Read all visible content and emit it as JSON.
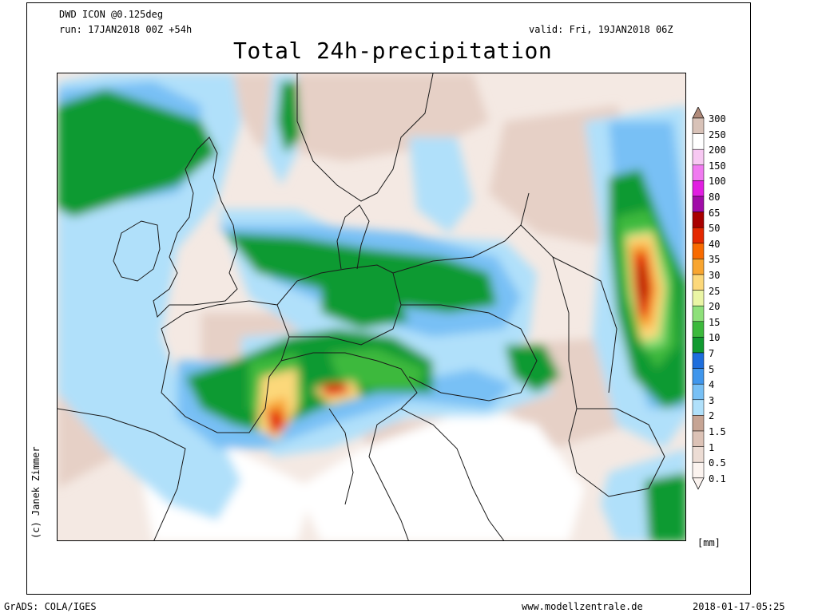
{
  "header": {
    "model": "DWD ICON @0.125deg",
    "run": "run: 17JAN2018 00Z +54h",
    "valid": "valid: Fri, 19JAN2018 06Z",
    "title": "Total 24h-precipitation"
  },
  "credit": "(c) Janek Zimmer",
  "legend": {
    "unit": "[mm]",
    "levels": [
      {
        "label": "300",
        "color": "#b08a7a"
      },
      {
        "label": "250",
        "color": "#d8c2b8"
      },
      {
        "label": "200",
        "color": "#ffffff"
      },
      {
        "label": "150",
        "color": "#f7c8f2"
      },
      {
        "label": "100",
        "color": "#f07af0"
      },
      {
        "label": "80",
        "color": "#e11ee1"
      },
      {
        "label": "65",
        "color": "#a00ca8"
      },
      {
        "label": "50",
        "color": "#a80000"
      },
      {
        "label": "40",
        "color": "#e42800"
      },
      {
        "label": "35",
        "color": "#f86a00"
      },
      {
        "label": "30",
        "color": "#f8a530"
      },
      {
        "label": "25",
        "color": "#fcd87a"
      },
      {
        "label": "20",
        "color": "#eaf5a5"
      },
      {
        "label": "15",
        "color": "#8ee07a"
      },
      {
        "label": "10",
        "color": "#3cb93c"
      },
      {
        "label": "7",
        "color": "#119a30"
      },
      {
        "label": "5",
        "color": "#1e6edc"
      },
      {
        "label": "4",
        "color": "#4096ec"
      },
      {
        "label": "3",
        "color": "#78c0f5"
      },
      {
        "label": "2",
        "color": "#b0e0fa"
      },
      {
        "label": "1.5",
        "color": "#c6a494"
      },
      {
        "label": "1",
        "color": "#dcc2b6"
      },
      {
        "label": "0.5",
        "color": "#ecdcd4"
      },
      {
        "label": "0.1",
        "color": "#fbf3ef"
      }
    ]
  },
  "footer": {
    "software": "GrADS: COLA/IGES",
    "website": "www.modellzentrale.de",
    "timestamp": "2018-01-17-05:25"
  },
  "map_colors": {
    "background": "#f4e9e3",
    "dry": "#ffffff",
    "light": "#e6d0c6",
    "blue_light": "#b0e0fa",
    "blue_mid": "#78c0f5",
    "blue_dark": "#3a86e6",
    "green_dark": "#119a30",
    "green_mid": "#3cb93c",
    "green_light": "#8ee07a",
    "yellow": "#fcd87a",
    "orange": "#f8a530",
    "red": "#e42800",
    "dark_red": "#a80000",
    "border": "#1a1a1a"
  }
}
